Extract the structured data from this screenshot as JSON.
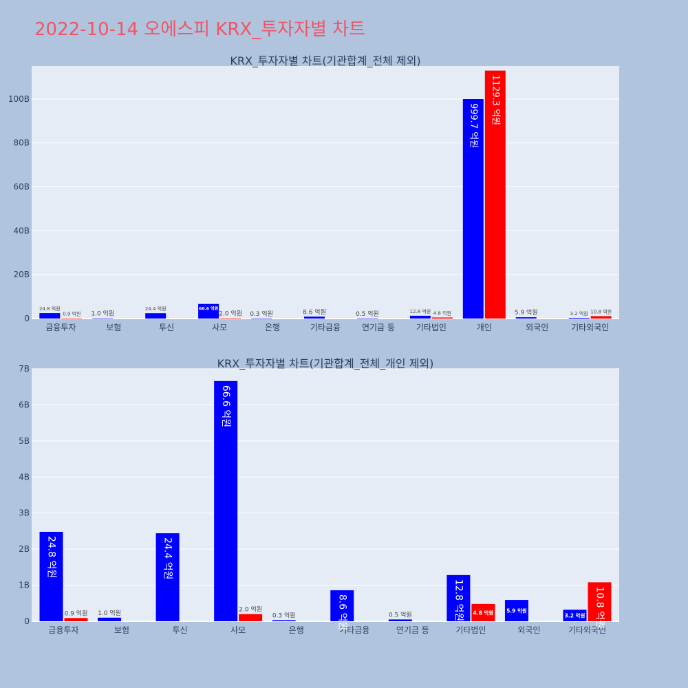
{
  "title": "2022-10-14 오에스피 KRX_투자자별 차트",
  "colors": {
    "background": "#b0c4de",
    "plot_bg": "#e5ecf6",
    "title": "#ef5565",
    "sell": "#0000ff",
    "buy": "#ff0000"
  },
  "chart_data": [
    {
      "type": "bar",
      "title": "KRX_투자자별 차트(기관합계_전체 제외)",
      "categories": [
        "금융투자",
        "보험",
        "투신",
        "사모",
        "은행",
        "기타금융",
        "연기금 등",
        "기타법인",
        "개인",
        "외국인",
        "기타외국인"
      ],
      "ylim": [
        0,
        115
      ],
      "yticks": [
        0,
        20,
        40,
        60,
        80,
        100
      ],
      "ytick_labels": [
        "0",
        "20B",
        "40B",
        "60B",
        "80B",
        "100B"
      ],
      "grid": true,
      "series": [
        {
          "color": "#0000ff",
          "values": [
            2.48,
            0.1,
            2.44,
            6.66,
            0.03,
            0.86,
            0.05,
            1.28,
            99.97,
            0.59,
            0.32
          ],
          "labels": [
            "24.8 억원",
            "1.0 억원",
            "24.4 억원",
            "66.6 억원",
            "0.3 억원",
            "8.6 억원",
            "0.5 억원",
            "12.8 억원",
            "999.7 억원",
            "5.9 억원",
            "3.2 억원"
          ]
        },
        {
          "color": "#ff0000",
          "values": [
            0.09,
            null,
            null,
            0.2,
            null,
            null,
            null,
            0.48,
            112.93,
            null,
            1.08
          ],
          "labels": [
            "0.9 억원",
            "",
            "",
            "2.0 억원",
            "",
            "",
            "",
            "4.8 억원",
            "1129.3 억원",
            "",
            "10.8 억원"
          ]
        }
      ]
    },
    {
      "type": "bar",
      "title": "KRX_투자자별 차트(기관합계_전체_개인 제외)",
      "categories": [
        "금융투자",
        "보험",
        "투신",
        "사모",
        "은행",
        "기타금융",
        "연기금 등",
        "기타법인",
        "외국인",
        "기타외국인"
      ],
      "ylim": [
        0,
        7
      ],
      "yticks": [
        0,
        1,
        2,
        3,
        4,
        5,
        6,
        7
      ],
      "ytick_labels": [
        "0",
        "1B",
        "2B",
        "3B",
        "4B",
        "5B",
        "6B",
        "7B"
      ],
      "grid": true,
      "series": [
        {
          "color": "#0000ff",
          "values": [
            2.48,
            0.1,
            2.44,
            6.66,
            0.03,
            0.86,
            0.05,
            1.28,
            0.59,
            0.32
          ],
          "labels": [
            "24.8 억원",
            "1.0 억원",
            "24.4 억원",
            "66.6 억원",
            "0.3 억원",
            "8.6 억원",
            "0.5 억원",
            "12.8 억원",
            "5.9 억원",
            "3.2 억원"
          ]
        },
        {
          "color": "#ff0000",
          "values": [
            0.09,
            null,
            null,
            0.2,
            null,
            null,
            null,
            0.48,
            null,
            1.08
          ],
          "labels": [
            "0.9 억원",
            "",
            "",
            "2.0 억원",
            "",
            "",
            "",
            "4.8 억원",
            "",
            "10.8 억원"
          ]
        }
      ]
    }
  ]
}
